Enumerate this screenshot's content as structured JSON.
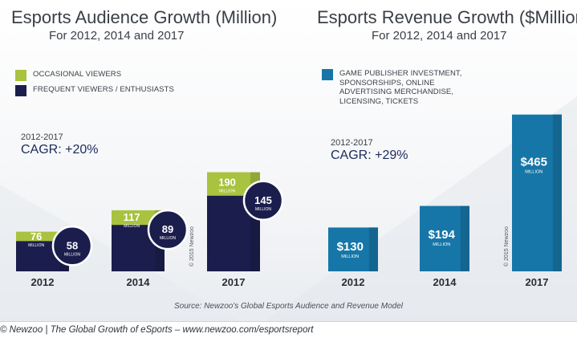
{
  "colors": {
    "occasional": "#a9c23f",
    "frequent": "#1b1e4c",
    "revenue": "#1776a8",
    "circle_border": "#ffffff"
  },
  "left": {
    "title": "Esports Audience Growth (Million)",
    "subtitle": "For 2012, 2014 and 2017",
    "legend": [
      "OCCASIONAL VIEWERS",
      "FREQUENT VIEWERS / ENTHUSIASTS"
    ],
    "cagr_period": "2012-2017",
    "cagr_value": "CAGR: +20%",
    "copyright": "© 2015 Newzoo"
  },
  "right": {
    "title": "Esports Revenue Growth ($Million)",
    "subtitle": "For 2012, 2014 and 2017",
    "legend": [
      "GAME PUBLISHER INVESTMENT, SPONSORSHIPS, ONLINE ADVERTISING MERCHANDISE, LICENSING, TICKETS"
    ],
    "cagr_period": "2012-2017",
    "cagr_value": "CAGR: +29%",
    "copyright": "© 2015 Newzoo"
  },
  "source": "Source: Newzoo's Global Esports Audience and Revenue Model",
  "caption": "© Newzoo | The Global Growth of eSports – www.newzoo.com/esportsreport",
  "chart_data": [
    {
      "type": "bar",
      "title": "Esports Audience Growth (Million)",
      "subtitle": "For 2012, 2014 and 2017",
      "categories": [
        "2012",
        "2014",
        "2017"
      ],
      "stacked": true,
      "unit_label": "MILLION",
      "series": [
        {
          "name": "FREQUENT VIEWERS / ENTHUSIASTS",
          "values": [
            58,
            89,
            145
          ],
          "labels": [
            "58",
            "89",
            "145"
          ]
        },
        {
          "name": "OCCASIONAL VIEWERS",
          "values": [
            76,
            117,
            190
          ],
          "labels": [
            "76",
            "117",
            "190"
          ]
        }
      ],
      "legend_position": "top-left",
      "grid": false
    },
    {
      "type": "bar",
      "title": "Esports Revenue Growth ($Million)",
      "subtitle": "For 2012, 2014 and 2017",
      "categories": [
        "2012",
        "2014",
        "2017"
      ],
      "unit_label": "MILLION",
      "series": [
        {
          "name": "GAME PUBLISHER INVESTMENT, SPONSORSHIPS, ONLINE ADVERTISING MERCHANDISE, LICENSING, TICKETS",
          "values": [
            130,
            194,
            465
          ],
          "labels": [
            "$130",
            "$194",
            "$465"
          ]
        }
      ],
      "legend_position": "top-left",
      "grid": false
    }
  ]
}
